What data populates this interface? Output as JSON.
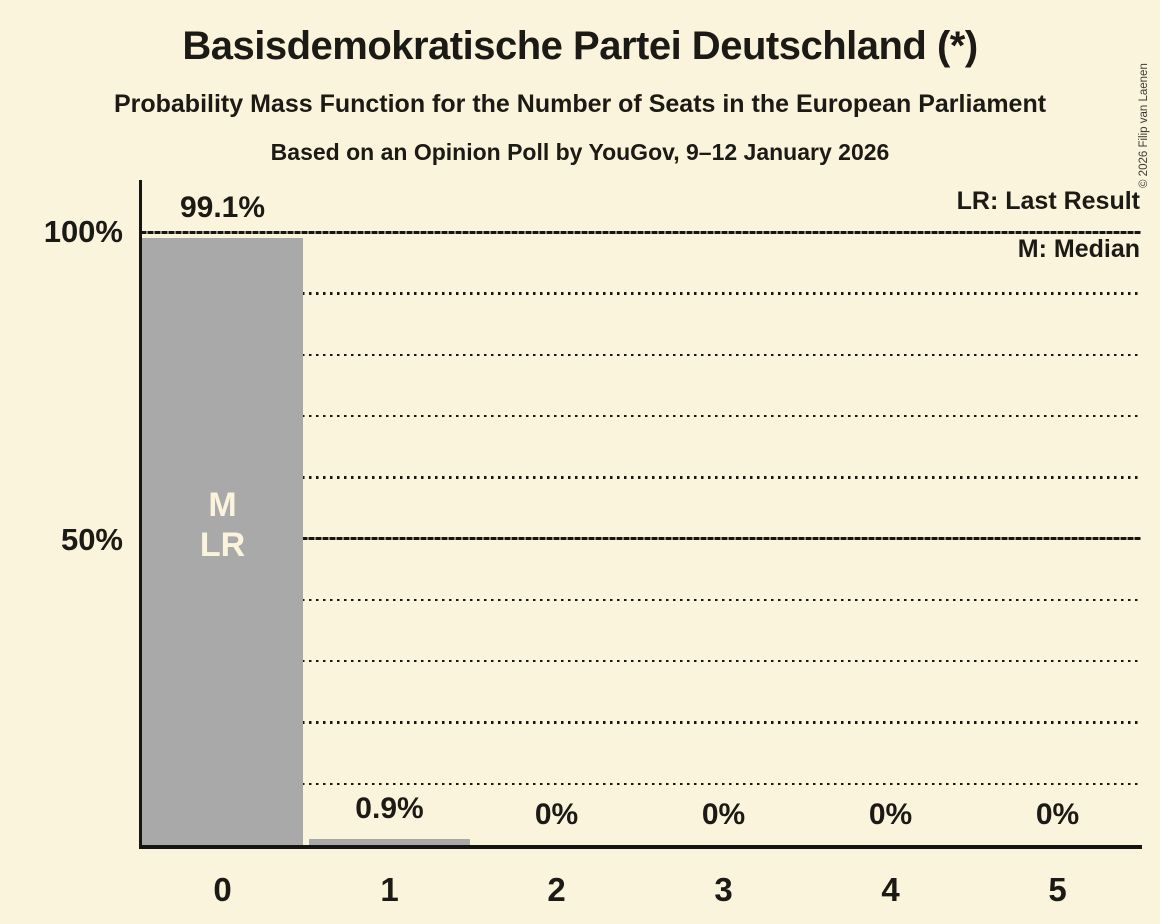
{
  "title": "Basisdemokratische Partei Deutschland (*)",
  "subtitle": "Probability Mass Function for the Number of Seats in the European Parliament",
  "source_line": "Based on an Opinion Poll by YouGov, 9–12 January 2026",
  "copyright": "© 2026 Filip van Laenen",
  "legend": {
    "last_result": "LR: Last Result",
    "median": "M: Median"
  },
  "colors": {
    "background": "#fbf4dc",
    "bar": "#a9a9a9",
    "text": "#1b1a15",
    "bar_annotation_text": "#fbf4dc"
  },
  "chart_data": {
    "type": "bar",
    "title": "Basisdemokratische Partei Deutschland (*)",
    "subtitle": "Probability Mass Function for the Number of Seats in the European Parliament",
    "source": "Based on an Opinion Poll by YouGov, 9–12 January 2026",
    "categories": [
      "0",
      "1",
      "2",
      "3",
      "4",
      "5"
    ],
    "values": [
      99.1,
      0.9,
      0,
      0,
      0,
      0
    ],
    "value_labels": [
      "99.1%",
      "0.9%",
      "0%",
      "0%",
      "0%",
      "0%"
    ],
    "ylim": [
      0,
      100
    ],
    "y_ticks": [
      {
        "value": 100,
        "label": "100%"
      },
      {
        "value": 50,
        "label": "50%"
      }
    ],
    "gridlines": {
      "solid_percents": [
        100,
        50
      ],
      "dotted_percents": [
        90,
        80,
        70,
        60,
        40,
        30,
        20,
        10
      ]
    },
    "legend_position": "top-right",
    "legend_entries": [
      "LR: Last Result",
      "M: Median"
    ],
    "bar_annotations": [
      {
        "bar_index": 0,
        "lines": [
          "M",
          "LR"
        ],
        "meaning": "Median and Last Result at 0 seats"
      }
    ]
  }
}
